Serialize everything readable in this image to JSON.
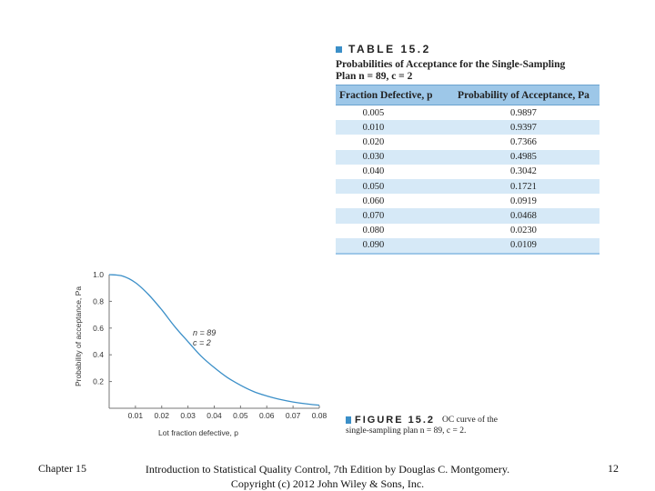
{
  "table": {
    "label": "TABLE 15.2",
    "caption_line1": "Probabilities of Acceptance for the Single-Sampling",
    "caption_line2": "Plan n = 89, c = 2",
    "col_headers": [
      "Fraction Defective, p",
      "Probability of Acceptance, Pa"
    ],
    "rows": [
      [
        "0.005",
        "0.9897"
      ],
      [
        "0.010",
        "0.9397"
      ],
      [
        "0.020",
        "0.7366"
      ],
      [
        "0.030",
        "0.4985"
      ],
      [
        "0.040",
        "0.3042"
      ],
      [
        "0.050",
        "0.1721"
      ],
      [
        "0.060",
        "0.0919"
      ],
      [
        "0.070",
        "0.0468"
      ],
      [
        "0.080",
        "0.0230"
      ],
      [
        "0.090",
        "0.0109"
      ]
    ]
  },
  "figure": {
    "label": "FIGURE 15.2",
    "caption_inline": "OC curve of the",
    "caption_line2": "single-sampling plan n = 89, c = 2."
  },
  "chart_data": {
    "type": "line",
    "title": "",
    "xlabel": "Lot fraction defective, p",
    "ylabel": "Probability of acceptance, Pa",
    "xlim": [
      0,
      0.08
    ],
    "ylim": [
      0,
      1.0
    ],
    "x_ticks": [
      "0.01",
      "0.02",
      "0.03",
      "0.04",
      "0.05",
      "0.06",
      "0.07",
      "0.08"
    ],
    "x_tick_values": [
      0.01,
      0.02,
      0.03,
      0.04,
      0.05,
      0.06,
      0.07,
      0.08
    ],
    "y_ticks": [
      "0.2",
      "0.4",
      "0.6",
      "0.8",
      "1.0"
    ],
    "y_tick_values": [
      0.2,
      0.4,
      0.6,
      0.8,
      1.0
    ],
    "annotation_line1": "n = 89",
    "annotation_line2": "c = 2",
    "line_color": "#3b8fc8",
    "series": [
      {
        "name": "OC curve",
        "x": [
          0,
          0.005,
          0.01,
          0.015,
          0.02,
          0.025,
          0.03,
          0.035,
          0.04,
          0.045,
          0.05,
          0.055,
          0.06,
          0.065,
          0.07,
          0.075,
          0.08
        ],
        "values": [
          1.0,
          0.9897,
          0.9397,
          0.85,
          0.7366,
          0.61,
          0.4985,
          0.39,
          0.3042,
          0.23,
          0.1721,
          0.125,
          0.0919,
          0.066,
          0.0468,
          0.033,
          0.023
        ]
      }
    ]
  },
  "footer": {
    "left": "Chapter 15",
    "center_line1": "Introduction to Statistical Quality Control, 7th Edition by Douglas C. Montgomery.",
    "center_line2": "Copyright (c) 2012 John Wiley & Sons, Inc.",
    "page": "12"
  }
}
